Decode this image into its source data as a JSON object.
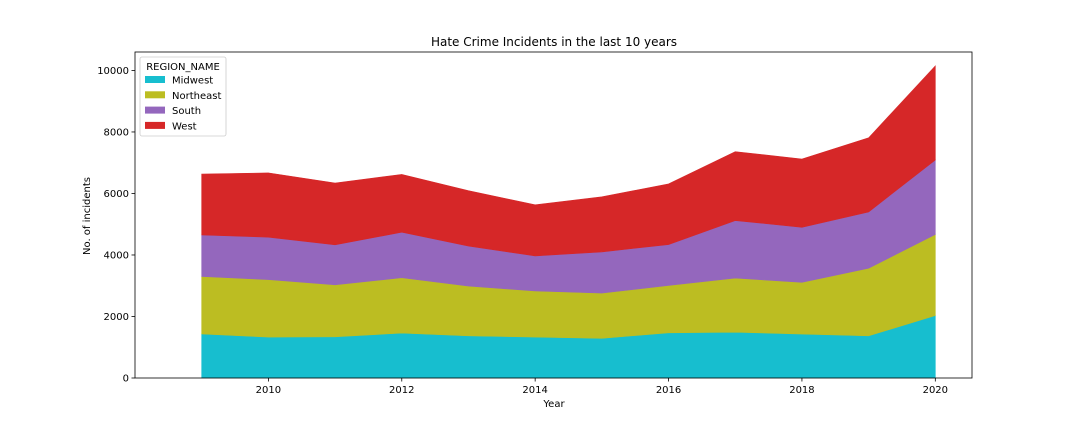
{
  "chart_data": {
    "type": "area",
    "stacked": true,
    "title": "Hate Crime Incidents in the last 10 years",
    "xlabel": "Year",
    "ylabel": "No. of incidents",
    "x": [
      2009,
      2010,
      2011,
      2012,
      2013,
      2014,
      2015,
      2016,
      2017,
      2018,
      2019,
      2020
    ],
    "xlim": [
      2008,
      2020.55
    ],
    "ylim": [
      0,
      10600
    ],
    "xticks": [
      2010,
      2012,
      2014,
      2016,
      2018,
      2020
    ],
    "yticks": [
      0,
      2000,
      4000,
      6000,
      8000,
      10000
    ],
    "legend": {
      "title": "REGION_NAME",
      "position": "upper-left"
    },
    "grid": false,
    "series": [
      {
        "name": "Midwest",
        "color": "#17becf",
        "values": [
          1430,
          1330,
          1340,
          1460,
          1370,
          1330,
          1290,
          1470,
          1490,
          1430,
          1370,
          2030
        ]
      },
      {
        "name": "Northeast",
        "color": "#bcbd22",
        "values": [
          1870,
          1870,
          1690,
          1800,
          1620,
          1500,
          1470,
          1540,
          1760,
          1680,
          2200,
          2640
        ]
      },
      {
        "name": "South",
        "color": "#9467bd",
        "values": [
          1350,
          1380,
          1300,
          1480,
          1300,
          1140,
          1340,
          1330,
          1870,
          1790,
          1830,
          2420
        ]
      },
      {
        "name": "West",
        "color": "#d62728",
        "values": [
          1980,
          2090,
          2010,
          1880,
          1800,
          1660,
          1790,
          1970,
          2240,
          2220,
          2410,
          3060
        ]
      }
    ]
  }
}
